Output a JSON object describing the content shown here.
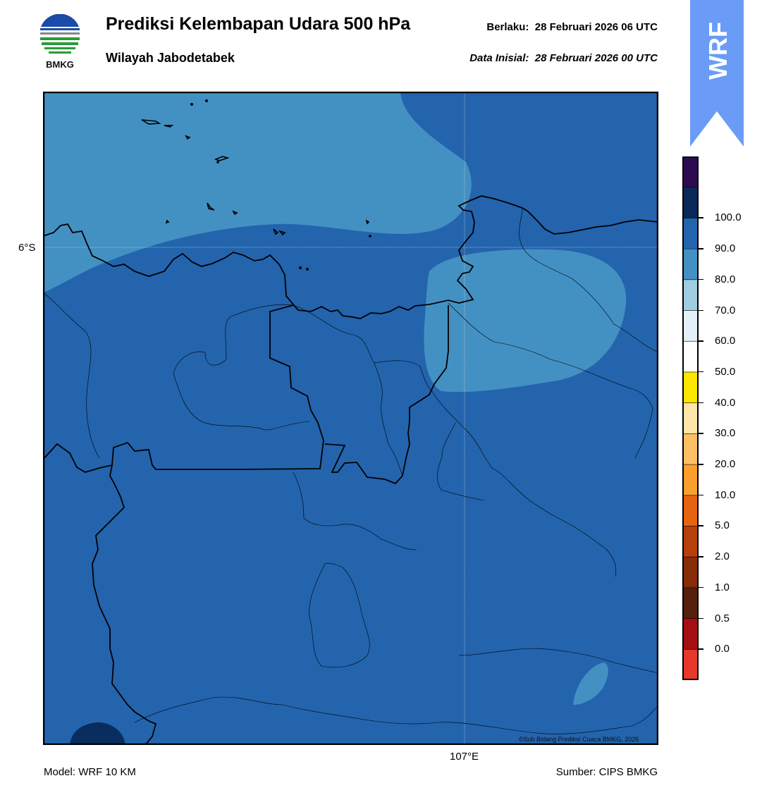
{
  "header": {
    "logo_text": "BMKG",
    "title": "Prediksi Kelembapan Udara 500 hPa",
    "subtitle": "Wilayah Jabodetabek",
    "valid_label": "Berlaku:",
    "valid_time": "28 Februari 2026 06 UTC",
    "init_label": "Data Inisial:",
    "init_time": "28 Februari 2026 00 UTC",
    "badge_text": "WRF"
  },
  "map": {
    "lat_label": "6°S",
    "lon_label": "107°E",
    "credit": "©Sub Bidang Prediksi Cuaca BMKG, 2026",
    "colors": {
      "background_rh": "#2364ad",
      "moist_patch": "#4391c3",
      "wet_patch": "#082d5e",
      "coast": "#000000"
    }
  },
  "colorbar": {
    "labels": [
      "100.0",
      "90.0",
      "80.0",
      "70.0",
      "60.0",
      "50.0",
      "40.0",
      "30.0",
      "20.0",
      "10.0",
      "5.0",
      "2.0",
      "1.0",
      "0.5",
      "0.0"
    ],
    "colors_top_to_bottom": [
      "#2d0a52",
      "#08295a",
      "#2364ad",
      "#4391c3",
      "#9fcde1",
      "#e4f0f8",
      "#ffffff",
      "#fde600",
      "#fde6a8",
      "#fdc065",
      "#fb9f2d",
      "#e76412",
      "#b5400b",
      "#862d08",
      "#55200c",
      "#a50e12",
      "#e8382c"
    ]
  },
  "footer": {
    "model": "Model: WRF 10 KM",
    "source": "Sumber: CIPS BMKG"
  }
}
